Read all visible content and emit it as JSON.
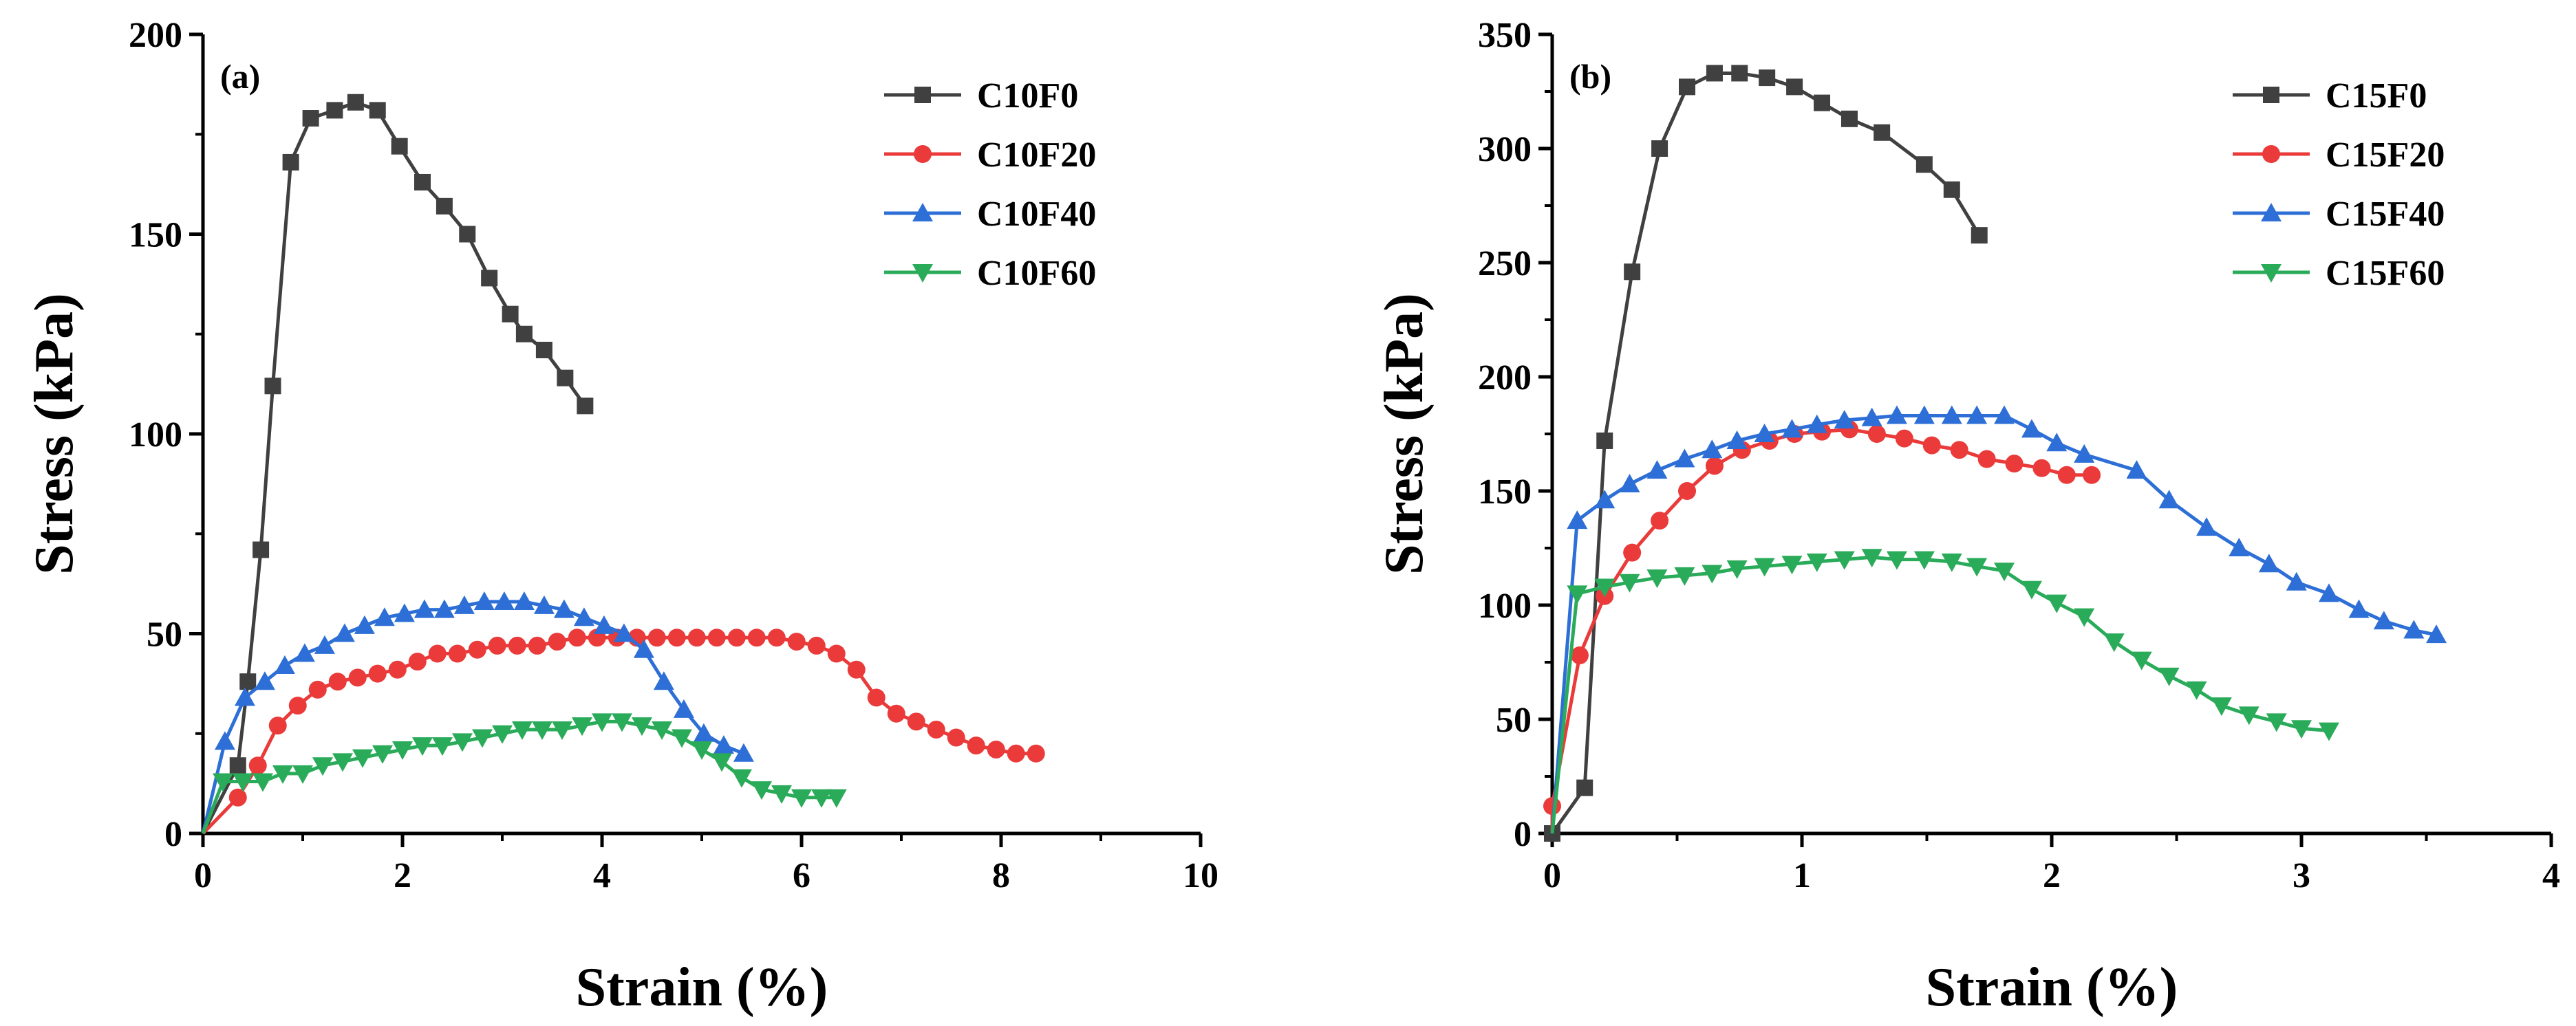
{
  "chart_data": [
    {
      "type": "line",
      "panel_label": "(a)",
      "xlabel": "Strain (%)",
      "ylabel": "Stress (kPa)",
      "xlim": [
        0,
        10
      ],
      "ylim": [
        0,
        200
      ],
      "xticks": [
        0,
        2,
        4,
        6,
        8,
        10
      ],
      "yticks": [
        0,
        50,
        100,
        150,
        200
      ],
      "grid": false,
      "legend_position": "top-right",
      "series": [
        {
          "name": "C10F0",
          "color": "#404040",
          "marker": "square",
          "points": [
            [
              0.35,
              17
            ],
            [
              0.45,
              38
            ],
            [
              0.58,
              71
            ],
            [
              0.7,
              112
            ],
            [
              0.88,
              168
            ],
            [
              1.08,
              179
            ],
            [
              1.32,
              181
            ],
            [
              1.53,
              183
            ],
            [
              1.75,
              181
            ],
            [
              1.97,
              172
            ],
            [
              2.2,
              163
            ],
            [
              2.42,
              157
            ],
            [
              2.65,
              150
            ],
            [
              2.87,
              139
            ],
            [
              3.08,
              130
            ],
            [
              3.22,
              125
            ],
            [
              3.42,
              121
            ],
            [
              3.63,
              114
            ],
            [
              3.83,
              107
            ]
          ]
        },
        {
          "name": "C10F20",
          "color": "#ea3a3a",
          "marker": "circle",
          "points": [
            [
              0.35,
              9
            ],
            [
              0.55,
              17
            ],
            [
              0.75,
              27
            ],
            [
              0.95,
              32
            ],
            [
              1.15,
              36
            ],
            [
              1.35,
              38
            ],
            [
              1.55,
              39
            ],
            [
              1.75,
              40
            ],
            [
              1.95,
              41
            ],
            [
              2.15,
              43
            ],
            [
              2.35,
              45
            ],
            [
              2.55,
              45
            ],
            [
              2.75,
              46
            ],
            [
              2.95,
              47
            ],
            [
              3.15,
              47
            ],
            [
              3.35,
              47
            ],
            [
              3.55,
              48
            ],
            [
              3.75,
              49
            ],
            [
              3.95,
              49
            ],
            [
              4.15,
              49
            ],
            [
              4.35,
              49
            ],
            [
              4.55,
              49
            ],
            [
              4.75,
              49
            ],
            [
              4.95,
              49
            ],
            [
              5.15,
              49
            ],
            [
              5.35,
              49
            ],
            [
              5.55,
              49
            ],
            [
              5.75,
              49
            ],
            [
              5.95,
              48
            ],
            [
              6.15,
              47
            ],
            [
              6.35,
              45
            ],
            [
              6.55,
              41
            ],
            [
              6.75,
              34
            ],
            [
              6.95,
              30
            ],
            [
              7.15,
              28
            ],
            [
              7.35,
              26
            ],
            [
              7.55,
              24
            ],
            [
              7.75,
              22
            ],
            [
              7.95,
              21
            ],
            [
              8.15,
              20
            ],
            [
              8.35,
              20
            ]
          ]
        },
        {
          "name": "C10F40",
          "color": "#2d6fd6",
          "marker": "triangle-up",
          "points": [
            [
              0.22,
              23
            ],
            [
              0.42,
              34
            ],
            [
              0.62,
              38
            ],
            [
              0.82,
              42
            ],
            [
              1.02,
              45
            ],
            [
              1.22,
              47
            ],
            [
              1.42,
              50
            ],
            [
              1.62,
              52
            ],
            [
              1.82,
              54
            ],
            [
              2.02,
              55
            ],
            [
              2.22,
              56
            ],
            [
              2.42,
              56
            ],
            [
              2.62,
              57
            ],
            [
              2.82,
              58
            ],
            [
              3.02,
              58
            ],
            [
              3.22,
              58
            ],
            [
              3.42,
              57
            ],
            [
              3.62,
              56
            ],
            [
              3.82,
              54
            ],
            [
              4.02,
              52
            ],
            [
              4.22,
              50
            ],
            [
              4.42,
              46
            ],
            [
              4.62,
              38
            ],
            [
              4.82,
              31
            ],
            [
              5.02,
              25
            ],
            [
              5.22,
              22
            ],
            [
              5.42,
              20
            ]
          ]
        },
        {
          "name": "C10F60",
          "color": "#2aab5a",
          "marker": "triangle-down",
          "points": [
            [
              0.2,
              13
            ],
            [
              0.4,
              13
            ],
            [
              0.6,
              13
            ],
            [
              0.8,
              15
            ],
            [
              1.0,
              15
            ],
            [
              1.2,
              17
            ],
            [
              1.4,
              18
            ],
            [
              1.6,
              19
            ],
            [
              1.8,
              20
            ],
            [
              2.0,
              21
            ],
            [
              2.2,
              22
            ],
            [
              2.4,
              22
            ],
            [
              2.6,
              23
            ],
            [
              2.8,
              24
            ],
            [
              3.0,
              25
            ],
            [
              3.2,
              26
            ],
            [
              3.4,
              26
            ],
            [
              3.6,
              26
            ],
            [
              3.8,
              27
            ],
            [
              4.0,
              28
            ],
            [
              4.2,
              28
            ],
            [
              4.4,
              27
            ],
            [
              4.6,
              26
            ],
            [
              4.8,
              24
            ],
            [
              5.0,
              21
            ],
            [
              5.2,
              18
            ],
            [
              5.4,
              14
            ],
            [
              5.6,
              11
            ],
            [
              5.8,
              10
            ],
            [
              6.0,
              9
            ],
            [
              6.2,
              9
            ],
            [
              6.35,
              9
            ]
          ]
        }
      ]
    },
    {
      "type": "line",
      "panel_label": "(b)",
      "xlabel": "Strain (%)",
      "ylabel": "Stress (kPa)",
      "xlim": [
        0,
        4
      ],
      "ylim": [
        0,
        350
      ],
      "xticks": [
        0,
        1,
        2,
        3,
        4
      ],
      "yticks": [
        0,
        50,
        100,
        150,
        200,
        250,
        300,
        350
      ],
      "grid": false,
      "legend_position": "top-right",
      "series": [
        {
          "name": "C15F0",
          "color": "#404040",
          "marker": "square",
          "points": [
            [
              0.0,
              0
            ],
            [
              0.13,
              20
            ],
            [
              0.21,
              172
            ],
            [
              0.32,
              246
            ],
            [
              0.43,
              300
            ],
            [
              0.54,
              327
            ],
            [
              0.65,
              333
            ],
            [
              0.75,
              333
            ],
            [
              0.86,
              331
            ],
            [
              0.97,
              327
            ],
            [
              1.08,
              320
            ],
            [
              1.19,
              313
            ],
            [
              1.32,
              307
            ],
            [
              1.49,
              293
            ],
            [
              1.6,
              282
            ],
            [
              1.71,
              262
            ]
          ]
        },
        {
          "name": "C15F20",
          "color": "#ea3a3a",
          "marker": "circle",
          "points": [
            [
              0.0,
              12
            ],
            [
              0.11,
              78
            ],
            [
              0.21,
              104
            ],
            [
              0.32,
              123
            ],
            [
              0.43,
              137
            ],
            [
              0.54,
              150
            ],
            [
              0.65,
              161
            ],
            [
              0.76,
              168
            ],
            [
              0.87,
              172
            ],
            [
              0.97,
              175
            ],
            [
              1.08,
              176
            ],
            [
              1.19,
              177
            ],
            [
              1.3,
              175
            ],
            [
              1.41,
              173
            ],
            [
              1.52,
              170
            ],
            [
              1.63,
              168
            ],
            [
              1.74,
              164
            ],
            [
              1.85,
              162
            ],
            [
              1.96,
              160
            ],
            [
              2.06,
              157
            ],
            [
              2.16,
              157
            ]
          ]
        },
        {
          "name": "C15F40",
          "color": "#2d6fd6",
          "marker": "triangle-up",
          "points": [
            [
              0.1,
              137
            ],
            [
              0.21,
              146
            ],
            [
              0.31,
              153
            ],
            [
              0.42,
              159
            ],
            [
              0.53,
              164
            ],
            [
              0.64,
              168
            ],
            [
              0.74,
              172
            ],
            [
              0.85,
              175
            ],
            [
              0.96,
              177
            ],
            [
              1.06,
              179
            ],
            [
              1.17,
              181
            ],
            [
              1.28,
              182
            ],
            [
              1.38,
              183
            ],
            [
              1.49,
              183
            ],
            [
              1.6,
              183
            ],
            [
              1.7,
              183
            ],
            [
              1.81,
              183
            ],
            [
              1.92,
              177
            ],
            [
              2.02,
              171
            ],
            [
              2.13,
              166
            ],
            [
              2.34,
              159
            ],
            [
              2.47,
              146
            ],
            [
              2.62,
              134
            ],
            [
              2.75,
              125
            ],
            [
              2.87,
              118
            ],
            [
              2.98,
              110
            ],
            [
              3.11,
              105
            ],
            [
              3.23,
              98
            ],
            [
              3.33,
              93
            ],
            [
              3.45,
              89
            ],
            [
              3.54,
              87
            ]
          ]
        },
        {
          "name": "C15F60",
          "color": "#2aab5a",
          "marker": "triangle-down",
          "points": [
            [
              0.1,
              105
            ],
            [
              0.21,
              108
            ],
            [
              0.31,
              110
            ],
            [
              0.42,
              112
            ],
            [
              0.53,
              113
            ],
            [
              0.64,
              114
            ],
            [
              0.74,
              116
            ],
            [
              0.85,
              117
            ],
            [
              0.96,
              118
            ],
            [
              1.06,
              119
            ],
            [
              1.17,
              120
            ],
            [
              1.28,
              121
            ],
            [
              1.38,
              120
            ],
            [
              1.49,
              120
            ],
            [
              1.6,
              119
            ],
            [
              1.7,
              117
            ],
            [
              1.81,
              115
            ],
            [
              1.92,
              107
            ],
            [
              2.02,
              101
            ],
            [
              2.13,
              95
            ],
            [
              2.25,
              84
            ],
            [
              2.36,
              76
            ],
            [
              2.47,
              69
            ],
            [
              2.58,
              63
            ],
            [
              2.68,
              56
            ],
            [
              2.79,
              52
            ],
            [
              2.9,
              49
            ],
            [
              3.0,
              46
            ],
            [
              3.11,
              45
            ]
          ]
        }
      ]
    }
  ]
}
